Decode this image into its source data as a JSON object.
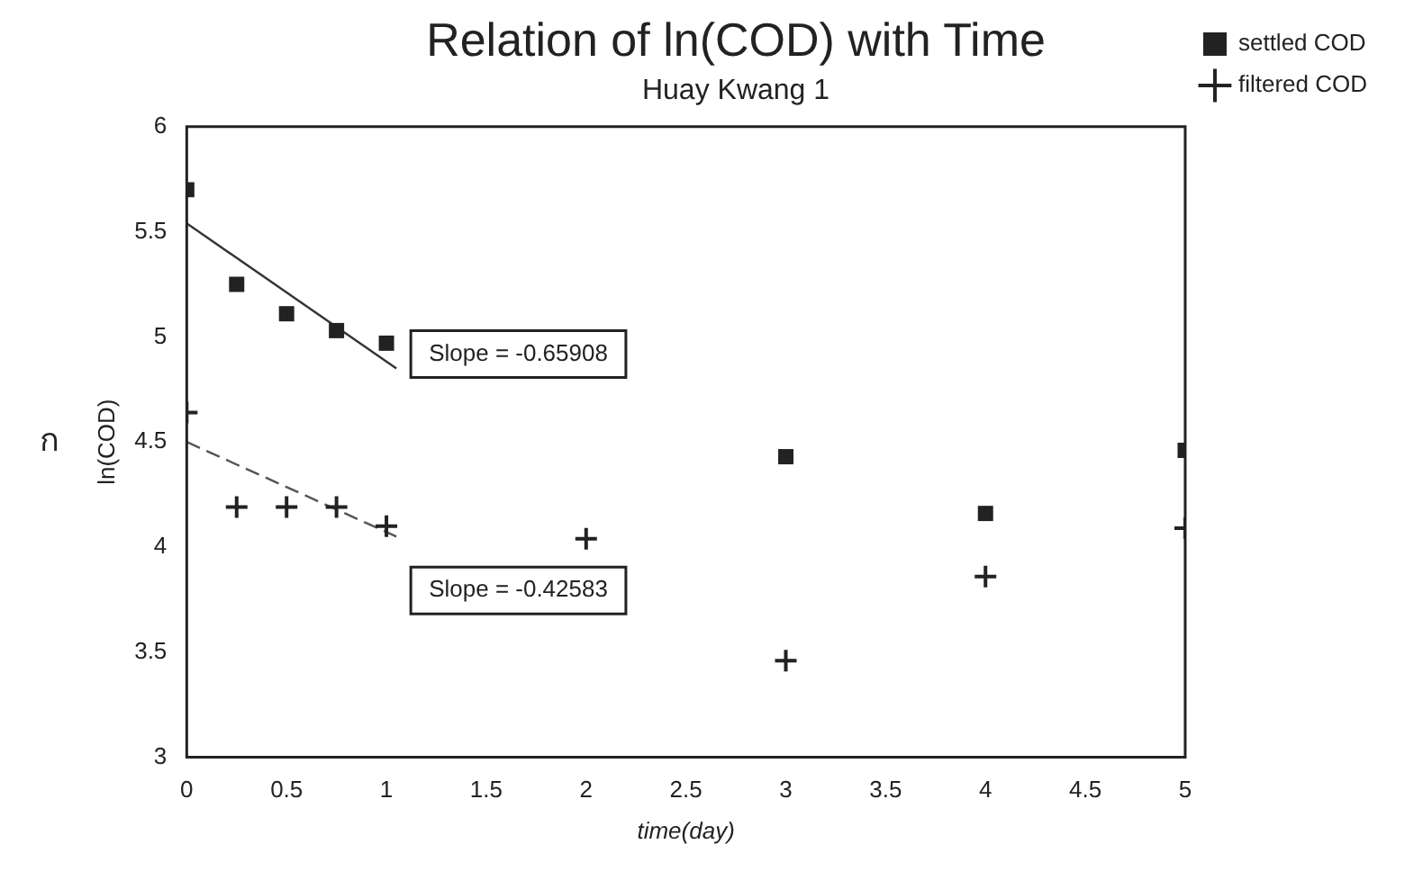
{
  "chart_data": {
    "type": "scatter",
    "title": "Relation of ln(COD) with Time",
    "subtitle": "Huay Kwang 1",
    "xlabel": "time(day)",
    "ylabel": "ln(COD)",
    "xlim": [
      0,
      5
    ],
    "xticks": [
      0,
      0.5,
      1,
      1.5,
      2,
      2.5,
      3,
      3.5,
      4,
      4.5,
      5
    ],
    "ylim": [
      3,
      6
    ],
    "yticks": [
      3,
      3.5,
      4,
      4.5,
      5,
      5.5,
      6
    ],
    "grid": false,
    "legend": "top right",
    "series": [
      {
        "name": "settled COD",
        "color": "#222222",
        "marker": "square",
        "x": [
          0,
          0.25,
          0.5,
          0.75,
          1,
          3,
          4,
          5
        ],
        "values": [
          5.7,
          5.25,
          5.11,
          5.03,
          4.97,
          4.43,
          4.16,
          4.46
        ]
      },
      {
        "name": "filtered COD",
        "color": "#222222",
        "marker": "cross",
        "x": [
          0,
          0.25,
          0.5,
          0.75,
          1,
          2,
          3,
          4,
          5
        ],
        "values": [
          4.64,
          4.19,
          4.19,
          4.19,
          4.1,
          4.04,
          3.46,
          3.86,
          4.09
        ]
      },
      {
        "type": "line",
        "color": "#333333",
        "line_style": "solid",
        "marker": "none",
        "x": [
          0,
          1.05
        ],
        "values": [
          5.54,
          4.85
        ]
      },
      {
        "type": "line",
        "color": "#555555",
        "line_style": "dashed",
        "marker": "none",
        "x": [
          0,
          1.05
        ],
        "values": [
          4.5,
          4.05
        ]
      }
    ],
    "annotations": [
      "Slope = -0.65908",
      "Slope = -0.42583",
      "ก"
    ]
  }
}
